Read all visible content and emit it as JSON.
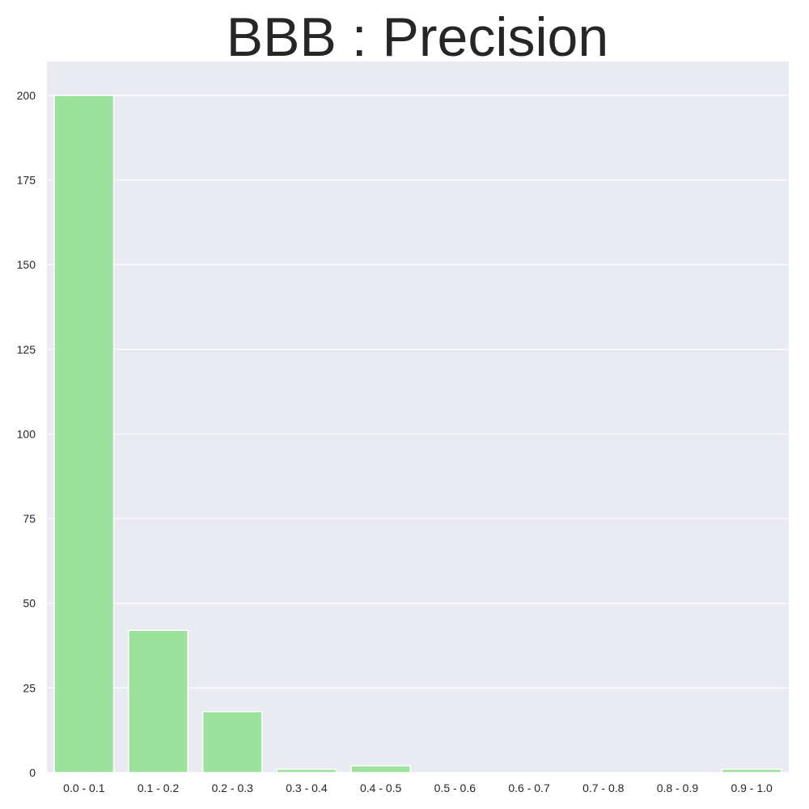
{
  "chart_data": {
    "type": "bar",
    "title": "BBB : Precision",
    "xlabel": "",
    "ylabel": "",
    "categories": [
      "0.0 - 0.1",
      "0.1 - 0.2",
      "0.2 - 0.3",
      "0.3 - 0.4",
      "0.4 - 0.5",
      "0.5 - 0.6",
      "0.6 - 0.7",
      "0.7 - 0.8",
      "0.8 - 0.9",
      "0.9 - 1.0"
    ],
    "values": [
      200,
      42,
      18,
      1,
      2,
      0,
      0,
      0,
      0,
      1
    ],
    "ylim": [
      0,
      210
    ],
    "yticks": [
      0,
      25,
      50,
      75,
      100,
      125,
      150,
      175,
      200
    ],
    "grid": true,
    "colors": {
      "bar": "#9de29c",
      "plot_background": "#eaeaf2",
      "grid": "#ffffff",
      "text": "#262626"
    }
  }
}
